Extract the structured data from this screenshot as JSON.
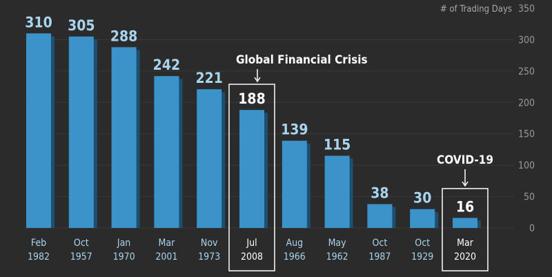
{
  "chart_data": {
    "type": "bar",
    "ylabel": "# of Trading Days",
    "ylim": [
      0,
      350
    ],
    "yticks": [
      0,
      50,
      100,
      150,
      200,
      250,
      300,
      350
    ],
    "grid": true,
    "categories": [
      [
        "Feb",
        "1982"
      ],
      [
        "Oct",
        "1957"
      ],
      [
        "Jan",
        "1970"
      ],
      [
        "Mar",
        "2001"
      ],
      [
        "Nov",
        "1973"
      ],
      [
        "Jul",
        "2008"
      ],
      [
        "Aug",
        "1966"
      ],
      [
        "May",
        "1962"
      ],
      [
        "Oct",
        "1987"
      ],
      [
        "Oct",
        "1929"
      ],
      [
        "Mar",
        "2020"
      ]
    ],
    "values": [
      310,
      305,
      288,
      242,
      221,
      188,
      139,
      115,
      38,
      30,
      16
    ],
    "annotations": [
      {
        "index": 5,
        "text": "Global Financial Crisis"
      },
      {
        "index": 10,
        "text": "COVID-19"
      }
    ],
    "colors": {
      "bar": "#3c93c9",
      "bar_shadow": "#1c4f70",
      "label": "#a9d4ee",
      "highlight": "#ffffff",
      "background": "#2b2b2b",
      "grid": "#3a3a3a"
    }
  }
}
